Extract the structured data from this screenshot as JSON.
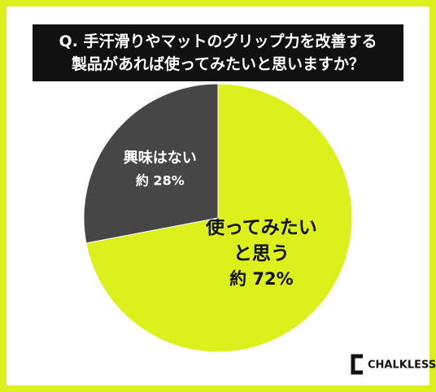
{
  "chart_data": {
    "type": "pie",
    "title": "Q. 手汗滑りやマットのグリップ力を改善する\n製品があれば使ってみたいと思いますか？",
    "categories": [
      "使ってみたい\nと思う",
      "興味はない"
    ],
    "values": [
      72,
      28
    ],
    "value_labels": [
      "約 72%",
      "約 28%"
    ],
    "colors": [
      "#dcf01e",
      "#464646"
    ],
    "label_colors": [
      "#111111",
      "#ffffff"
    ],
    "logo": "CHALKLESS"
  }
}
